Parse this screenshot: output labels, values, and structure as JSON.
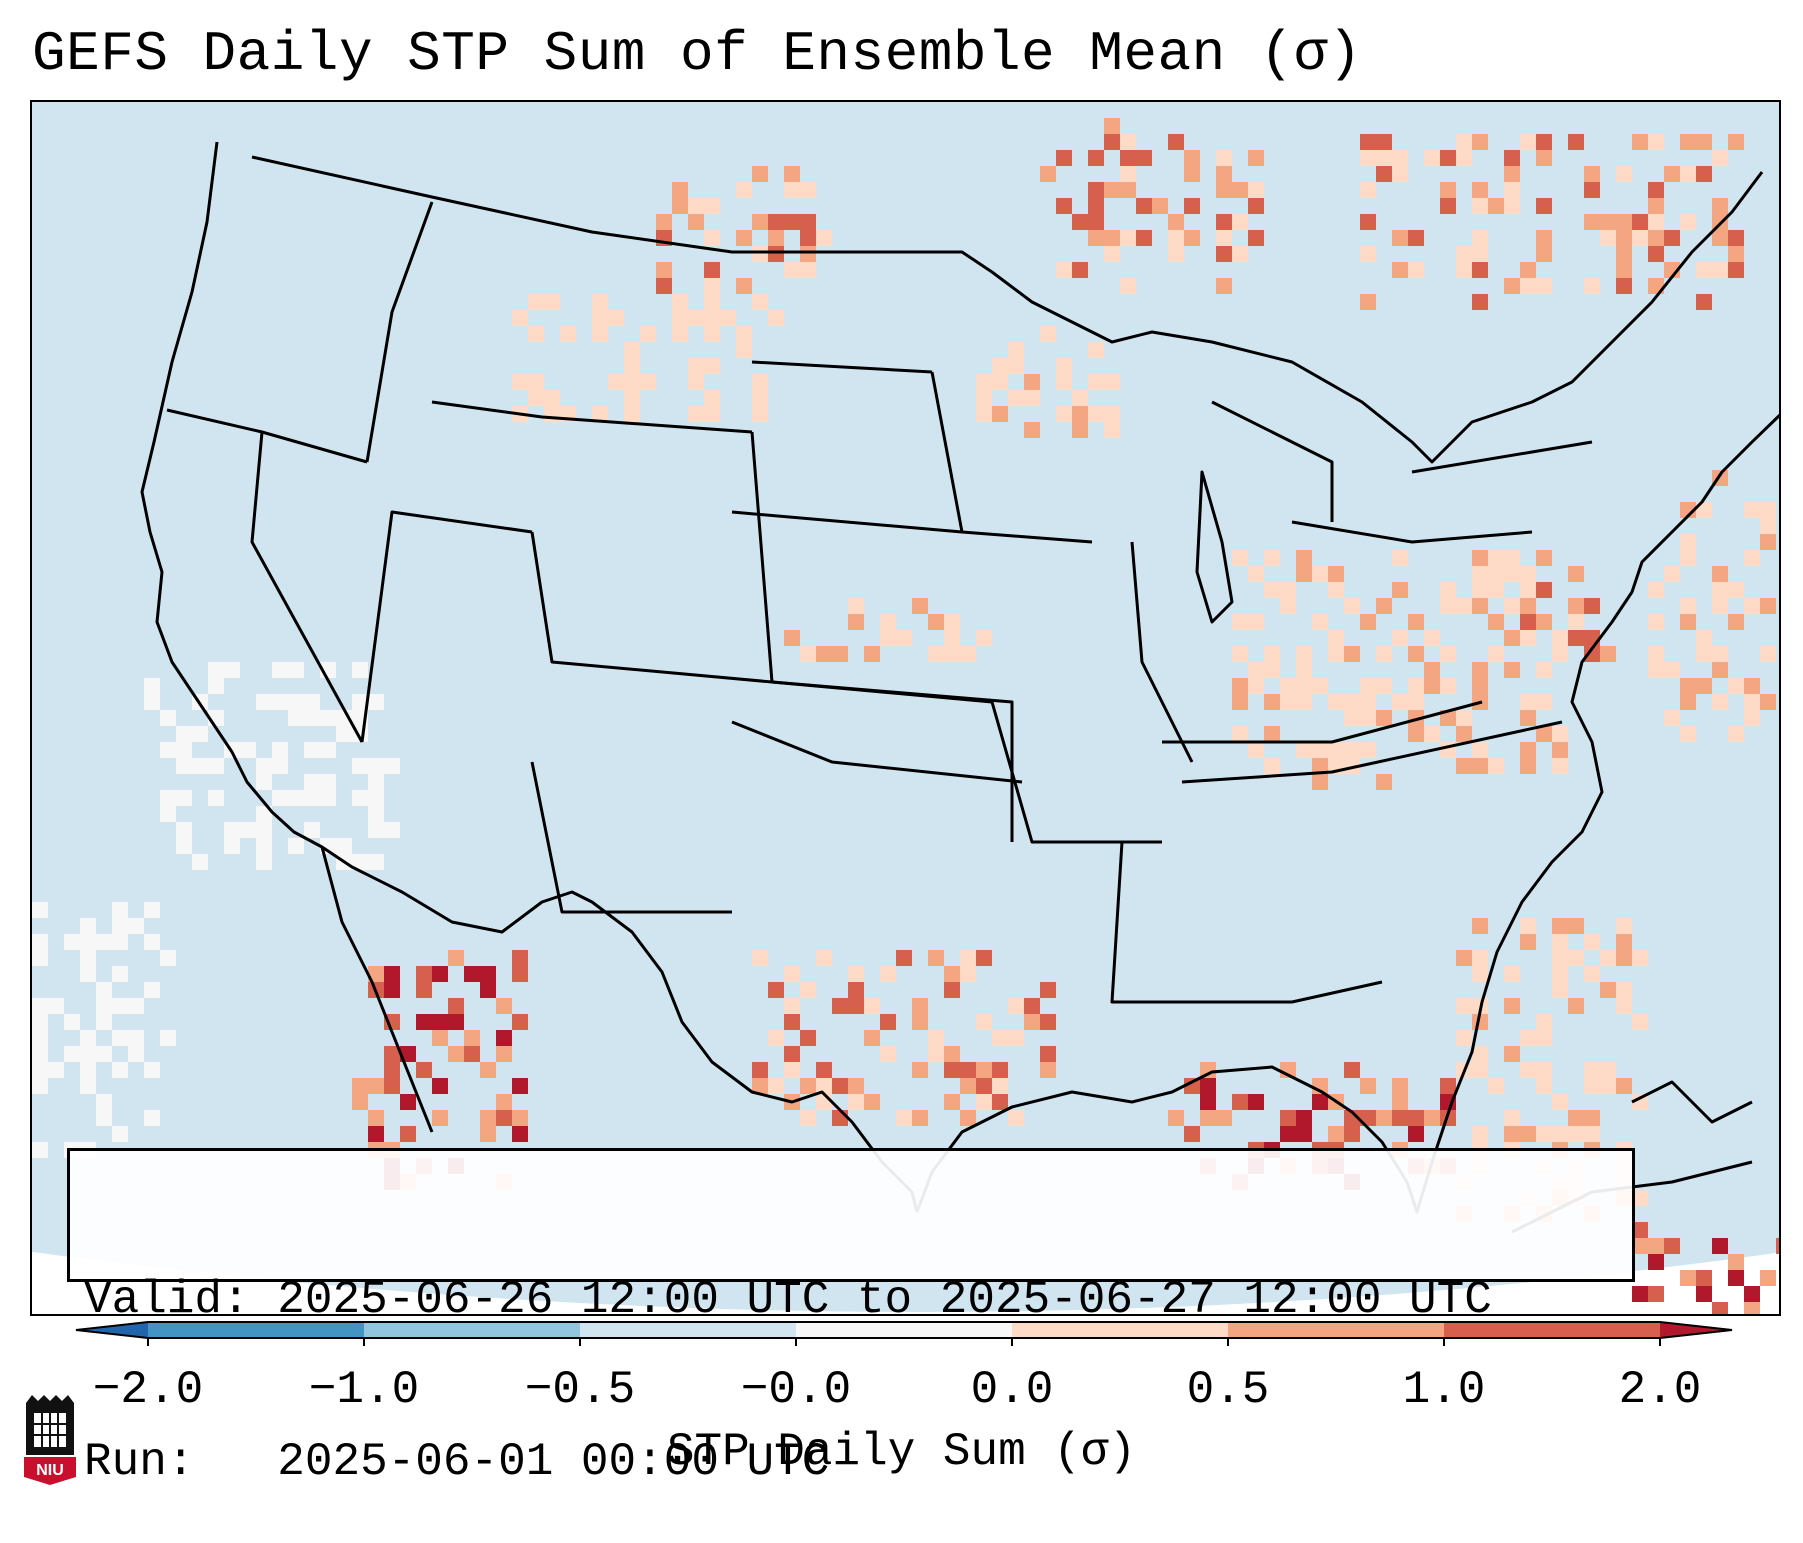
{
  "title": "GEFS Daily STP Sum of Ensemble Mean (σ)",
  "info": {
    "valid_label": "Valid:",
    "valid_value": "2025-06-26 12:00 UTC to 2025-06-27 12:00 UTC",
    "run_label": "Run:",
    "run_value": "2025-06-01 00:00 UTC"
  },
  "colorbar": {
    "label": "STP Daily Sum (σ)",
    "ticks": [
      "−2.0",
      "−1.0",
      "−0.5",
      "−0.0",
      "0.0",
      "0.5",
      "1.0",
      "2.0"
    ],
    "colors": [
      "#4393c3",
      "#92c5de",
      "#d1e5f0",
      "#f7f7f7",
      "#fddbc7",
      "#f4a582",
      "#d6604d"
    ],
    "under_color": "#2166ac",
    "over_color": "#b2182b"
  },
  "map_colors": {
    "background": "#d1e5f0",
    "outline": "#000000"
  },
  "logo": {
    "text": "NIU",
    "color": "#c8102e"
  }
}
